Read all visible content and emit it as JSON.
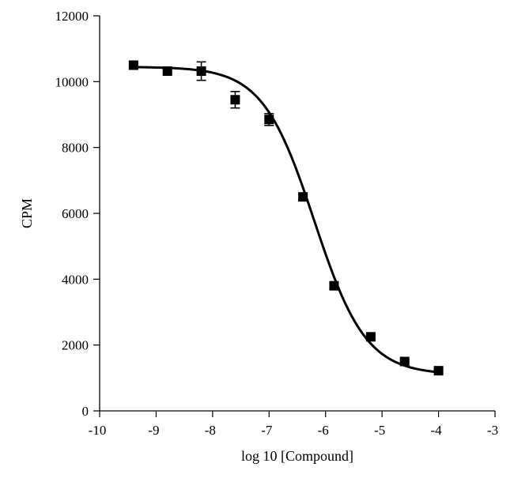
{
  "chart_data": {
    "type": "scatter",
    "xlabel": "log 10 [Compound]",
    "ylabel": "CPM",
    "xlim": [
      -10,
      -3
    ],
    "ylim": [
      0,
      12000
    ],
    "x_ticks": [
      -10,
      -9,
      -8,
      -7,
      -6,
      -5,
      -4,
      -3
    ],
    "y_ticks": [
      0,
      2000,
      4000,
      6000,
      8000,
      10000,
      12000
    ],
    "grid": false,
    "marker": "square",
    "points": [
      {
        "x": -9.4,
        "y": 10500,
        "err": 100
      },
      {
        "x": -8.8,
        "y": 10320,
        "err": 60
      },
      {
        "x": -8.2,
        "y": 10320,
        "err": 280
      },
      {
        "x": -7.6,
        "y": 9450,
        "err": 250
      },
      {
        "x": -7.0,
        "y": 8850,
        "err": 180
      },
      {
        "x": -6.4,
        "y": 6500,
        "err": 80
      },
      {
        "x": -5.85,
        "y": 3800,
        "err": 80
      },
      {
        "x": -5.2,
        "y": 2250,
        "err": 60
      },
      {
        "x": -4.6,
        "y": 1500,
        "err": 50
      },
      {
        "x": -4.0,
        "y": 1220,
        "err": 40
      }
    ],
    "fit_curve": {
      "type": "sigmoidal dose-response",
      "top": 10450,
      "bottom": 1100,
      "log_ic50": -6.2,
      "hill_slope": -0.95,
      "x_range": [
        -9.4,
        -4.0
      ]
    }
  }
}
